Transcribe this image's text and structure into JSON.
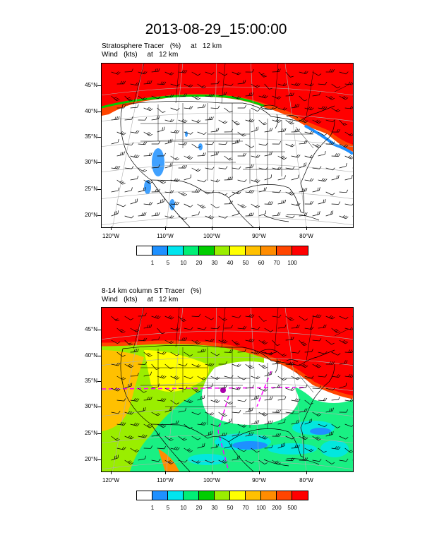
{
  "title": "2013-08-29_15:00:00",
  "panels": [
    {
      "subtitle_line1": "Stratosphere Tracer   (%)     at   12 km",
      "subtitle_line2": "Wind   (kts)     at   12 km",
      "lat_labels": [
        "45°N",
        "40°N",
        "35°N",
        "30°N",
        "25°N",
        "20°N"
      ],
      "lon_labels": [
        "120°W",
        "110°W",
        "100°W",
        "90°W",
        "80°W"
      ],
      "colorbar_labels": [
        "1",
        "5",
        "10",
        "20",
        "30",
        "40",
        "50",
        "60",
        "70",
        "100"
      ]
    },
    {
      "subtitle_line1": "8-14 km column ST Tracer   (%)",
      "subtitle_line2": "Wind   (kts)     at   12 km",
      "lat_labels": [
        "45°N",
        "40°N",
        "35°N",
        "30°N",
        "25°N",
        "20°N"
      ],
      "lon_labels": [
        "120°W",
        "110°W",
        "100°W",
        "90°W",
        "80°W"
      ],
      "colorbar_labels": [
        "1",
        "5",
        "10",
        "20",
        "30",
        "50",
        "70",
        "100",
        "200",
        "500"
      ]
    }
  ],
  "colorbar_colors": [
    "#ffffff",
    "#1e90ff",
    "#00e5ee",
    "#00ee76",
    "#00cd00",
    "#9aee00",
    "#ffff00",
    "#ffc000",
    "#ff8c00",
    "#ff4500",
    "#ff0000"
  ],
  "colors": {
    "high_tracer": "#ff0000",
    "wind_barb": "#000000",
    "boundaries": "#000000",
    "graticule": "#b0b0b0",
    "dashed_overlay": "#ff00ff"
  }
}
